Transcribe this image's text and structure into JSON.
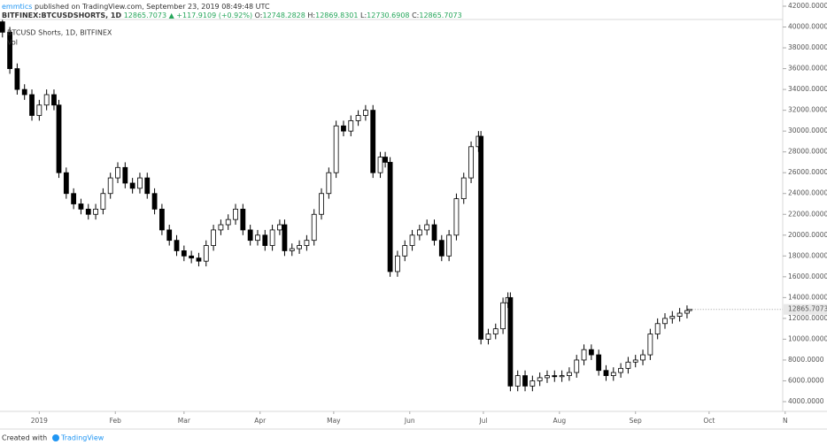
{
  "header": {
    "author": "emmtics",
    "published": "published on TradingView.com, September 23, 2019 08:49:48 UTC",
    "symbol": "BITFINEX:BTCUSDSHORTS, 1D",
    "price": "12865.7073",
    "change": "▲ +117.9109 (+0.92%)",
    "ohlc": [
      {
        "label": "O:",
        "value": "12748.2828"
      },
      {
        "label": "H:",
        "value": "12869.8301"
      },
      {
        "label": "L:",
        "value": "12730.6908"
      },
      {
        "label": "C:",
        "value": "12865.7073"
      }
    ]
  },
  "footer": {
    "created": "Created with",
    "brand": "TradingView"
  },
  "chart_data": {
    "type": "candlestick",
    "title": "BTCUSD Shorts, 1D, BITFINEX",
    "subtitle": "Vol",
    "up_color": "#ffffff",
    "down_color": "#000000",
    "grid": false,
    "x": [
      -15,
      -12,
      -9,
      -6,
      -3,
      0,
      3,
      6,
      8,
      11,
      14,
      17,
      20,
      23,
      26,
      29,
      32,
      35,
      38,
      41,
      44,
      47,
      50,
      53,
      56,
      59,
      62,
      65,
      68,
      71,
      74,
      77,
      80,
      83,
      86,
      89,
      92,
      95,
      98,
      100,
      103,
      106,
      109,
      112,
      115,
      118,
      121,
      124,
      127,
      130,
      133,
      136,
      139,
      141,
      143,
      146,
      149,
      152,
      155,
      158,
      161,
      164,
      167,
      170,
      173,
      176,
      179,
      180,
      183,
      186,
      189,
      191,
      192,
      195,
      198,
      201,
      204,
      207,
      210,
      213,
      216,
      219,
      222,
      225,
      228,
      231,
      234,
      237,
      240,
      243,
      246,
      249,
      252,
      255,
      258,
      261,
      264,
      265
    ],
    "open": [
      40500,
      39500,
      36000,
      34000,
      33500,
      31500,
      32500,
      33500,
      32500,
      26000,
      24000,
      23000,
      22500,
      22000,
      22500,
      24000,
      25500,
      26500,
      25000,
      24500,
      25500,
      24000,
      22500,
      20500,
      19500,
      18500,
      18000,
      17800,
      17500,
      19000,
      20500,
      21000,
      21500,
      22500,
      20500,
      19500,
      20000,
      19000,
      20500,
      21000,
      18500,
      18700,
      19000,
      19500,
      22000,
      24000,
      26000,
      30500,
      30000,
      31000,
      31500,
      32000,
      26000,
      27500,
      27000,
      16500,
      18000,
      19000,
      20000,
      20500,
      21000,
      19500,
      18000,
      20000,
      23500,
      25500,
      28500,
      29500,
      10000,
      10500,
      11000,
      13500,
      14000,
      5500,
      6500,
      5500,
      6000,
      6300,
      6500,
      6400,
      6500,
      6800,
      8000,
      9000,
      8500,
      7000,
      6500,
      6800,
      7200,
      7800,
      8000,
      8500,
      10500,
      11500,
      12000,
      12200,
      12500,
      12748.2828
    ],
    "high": [
      41000,
      40000,
      36500,
      34500,
      34000,
      33000,
      34000,
      34000,
      33000,
      26500,
      24500,
      23500,
      23000,
      23000,
      24500,
      26000,
      27000,
      27000,
      25500,
      26000,
      26000,
      24500,
      23000,
      21000,
      20000,
      19000,
      18500,
      18300,
      19500,
      21000,
      21500,
      22000,
      23000,
      23000,
      21000,
      20500,
      20500,
      21000,
      21500,
      21500,
      19200,
      19500,
      20000,
      22500,
      24500,
      26500,
      31000,
      31000,
      31500,
      32000,
      32500,
      32500,
      28000,
      28000,
      27500,
      18500,
      19500,
      20500,
      21000,
      21500,
      21500,
      20000,
      20500,
      24000,
      26000,
      29000,
      30000,
      30000,
      11000,
      11500,
      14000,
      14500,
      14500,
      7000,
      7000,
      6500,
      6800,
      7000,
      7000,
      7000,
      7300,
      8500,
      9500,
      9500,
      9000,
      7500,
      7300,
      7700,
      8300,
      8500,
      9000,
      11000,
      12000,
      12500,
      12700,
      13000,
      13250,
      12869.8301
    ],
    "low": [
      39000,
      35500,
      33500,
      33000,
      31000,
      31000,
      32000,
      32000,
      25500,
      23500,
      22500,
      22000,
      21500,
      21500,
      22000,
      23500,
      25000,
      24500,
      24000,
      24000,
      23500,
      22000,
      20000,
      19000,
      18000,
      17500,
      17300,
      17000,
      17000,
      18500,
      20000,
      20500,
      21000,
      20000,
      19000,
      19000,
      18500,
      18500,
      20000,
      18000,
      18000,
      18200,
      18500,
      19000,
      21500,
      23500,
      25500,
      29500,
      29500,
      30500,
      31000,
      25500,
      25500,
      26500,
      16000,
      16000,
      17500,
      18500,
      19500,
      20000,
      19000,
      17500,
      17500,
      19500,
      23000,
      25000,
      28000,
      9500,
      9500,
      10000,
      10500,
      13000,
      5000,
      5000,
      5000,
      5000,
      5500,
      5800,
      5900,
      5900,
      6000,
      6300,
      7500,
      8000,
      6500,
      6000,
      6000,
      6300,
      6700,
      7300,
      7500,
      8000,
      10000,
      11000,
      11500,
      11700,
      12000,
      12730.6908
    ],
    "close": [
      39500,
      36000,
      34000,
      33500,
      31500,
      32500,
      33500,
      32500,
      26000,
      24000,
      23000,
      22500,
      22000,
      22500,
      24000,
      25500,
      26500,
      25000,
      24500,
      25500,
      24000,
      22500,
      20500,
      19500,
      18500,
      18000,
      17800,
      17500,
      19000,
      20500,
      21000,
      21500,
      22500,
      20500,
      19500,
      20000,
      19000,
      20500,
      21000,
      18500,
      18700,
      19000,
      19500,
      22000,
      24000,
      26000,
      30500,
      30000,
      31000,
      31500,
      32000,
      26000,
      27500,
      27000,
      16500,
      18000,
      19000,
      20000,
      20500,
      21000,
      19500,
      18000,
      20000,
      23500,
      25500,
      28500,
      29500,
      10000,
      10500,
      11000,
      13500,
      14000,
      5500,
      6500,
      5500,
      6000,
      6300,
      6500,
      6400,
      6500,
      6800,
      8000,
      9000,
      8500,
      7000,
      6500,
      6800,
      7200,
      7800,
      8000,
      8500,
      10500,
      11500,
      12000,
      12200,
      12500,
      12750,
      12865.7073
    ],
    "xlim": [
      -16,
      303
    ],
    "xticks": [
      {
        "value": 0,
        "label": "2019"
      },
      {
        "value": 31,
        "label": "Feb"
      },
      {
        "value": 59,
        "label": "Mar"
      },
      {
        "value": 90,
        "label": "Apr"
      },
      {
        "value": 120,
        "label": "May"
      },
      {
        "value": 151,
        "label": "Jun"
      },
      {
        "value": 181,
        "label": "Jul"
      },
      {
        "value": 212,
        "label": "Aug"
      },
      {
        "value": 243,
        "label": "Sep"
      },
      {
        "value": 273,
        "label": "Oct"
      },
      {
        "value": 304,
        "label": "N"
      }
    ],
    "ylim": [
      3065,
      42595
    ],
    "yticks": [
      {
        "value": 4000,
        "label": "4000.0000"
      },
      {
        "value": 6000,
        "label": "6000.0000"
      },
      {
        "value": 8000,
        "label": "8000.0000"
      },
      {
        "value": 10000,
        "label": "10000.0000"
      },
      {
        "value": 12000,
        "label": "12000.0000"
      },
      {
        "value": 14000,
        "label": "14000.0000"
      },
      {
        "value": 16000,
        "label": "16000.0000"
      },
      {
        "value": 18000,
        "label": "18000.0000"
      },
      {
        "value": 20000,
        "label": "20000.0000"
      },
      {
        "value": 22000,
        "label": "22000.0000"
      },
      {
        "value": 24000,
        "label": "24000.0000"
      },
      {
        "value": 26000,
        "label": "26000.0000"
      },
      {
        "value": 28000,
        "label": "28000.0000"
      },
      {
        "value": 30000,
        "label": "30000.0000"
      },
      {
        "value": 32000,
        "label": "32000.0000"
      },
      {
        "value": 34000,
        "label": "34000.0000"
      },
      {
        "value": 36000,
        "label": "36000.0000"
      },
      {
        "value": 38000,
        "label": "38000.0000"
      },
      {
        "value": 40000,
        "label": "40000.0000"
      },
      {
        "value": 42000,
        "label": "42000.0000"
      }
    ]
  }
}
